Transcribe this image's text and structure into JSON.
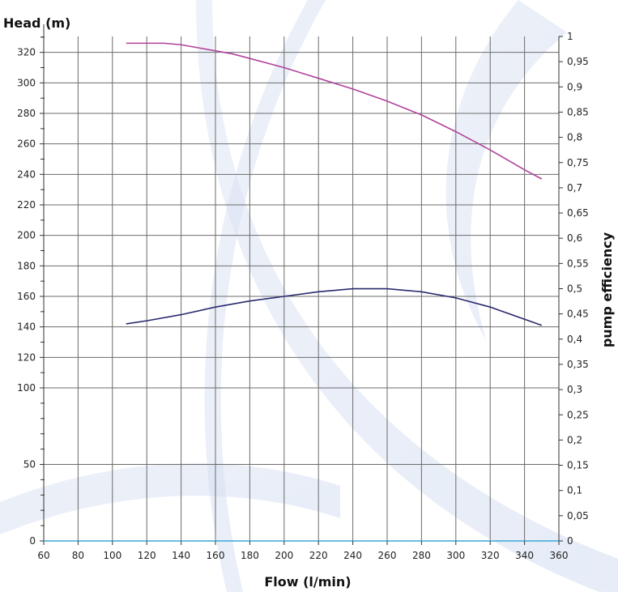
{
  "chart_data": {
    "type": "line",
    "title": "",
    "xlabel": "Flow (l/min)",
    "ylabel_left": "Head (m)",
    "ylabel_right": "pump efficiency",
    "xlim": [
      60,
      360
    ],
    "ylim_left": [
      0,
      340
    ],
    "ylim_right": [
      0,
      1
    ],
    "grid": true,
    "x_ticks": [
      "60",
      "80",
      "100",
      "120",
      "140",
      "160",
      "180",
      "200",
      "220",
      "240",
      "260",
      "280",
      "300",
      "320",
      "340",
      "360"
    ],
    "y_left_ticks": [
      "0",
      "50",
      "100",
      "120",
      "140",
      "160",
      "180",
      "200",
      "220",
      "240",
      "260",
      "280",
      "300",
      "320"
    ],
    "y_right_ticks": [
      "0",
      "0,05",
      "0,1",
      "0,15",
      "0,2",
      "0,25",
      "0,3",
      "0,35",
      "0,4",
      "0,45",
      "0,5",
      "0,55",
      "0,6",
      "0,65",
      "0,7",
      "0,75",
      "0,8",
      "0,85",
      "0,9",
      "0,95",
      "1"
    ],
    "series": [
      {
        "axis": "left",
        "color": "#b0439c",
        "x": [
          108,
          120,
          130,
          140,
          150,
          160,
          170,
          180,
          200,
          220,
          240,
          260,
          280,
          300,
          320,
          340,
          350
        ],
        "y": [
          326,
          326,
          326,
          325,
          323,
          321,
          319,
          316,
          310,
          303,
          296,
          288,
          279,
          268,
          256,
          243,
          237
        ]
      },
      {
        "axis": "left",
        "color": "#2a2a6e",
        "x": [
          108,
          120,
          140,
          160,
          180,
          200,
          220,
          240,
          250,
          260,
          280,
          300,
          320,
          340,
          350
        ],
        "y": [
          142,
          144,
          148,
          153,
          157,
          160,
          163,
          165,
          165,
          165,
          163,
          159,
          153,
          145,
          141
        ]
      }
    ]
  }
}
